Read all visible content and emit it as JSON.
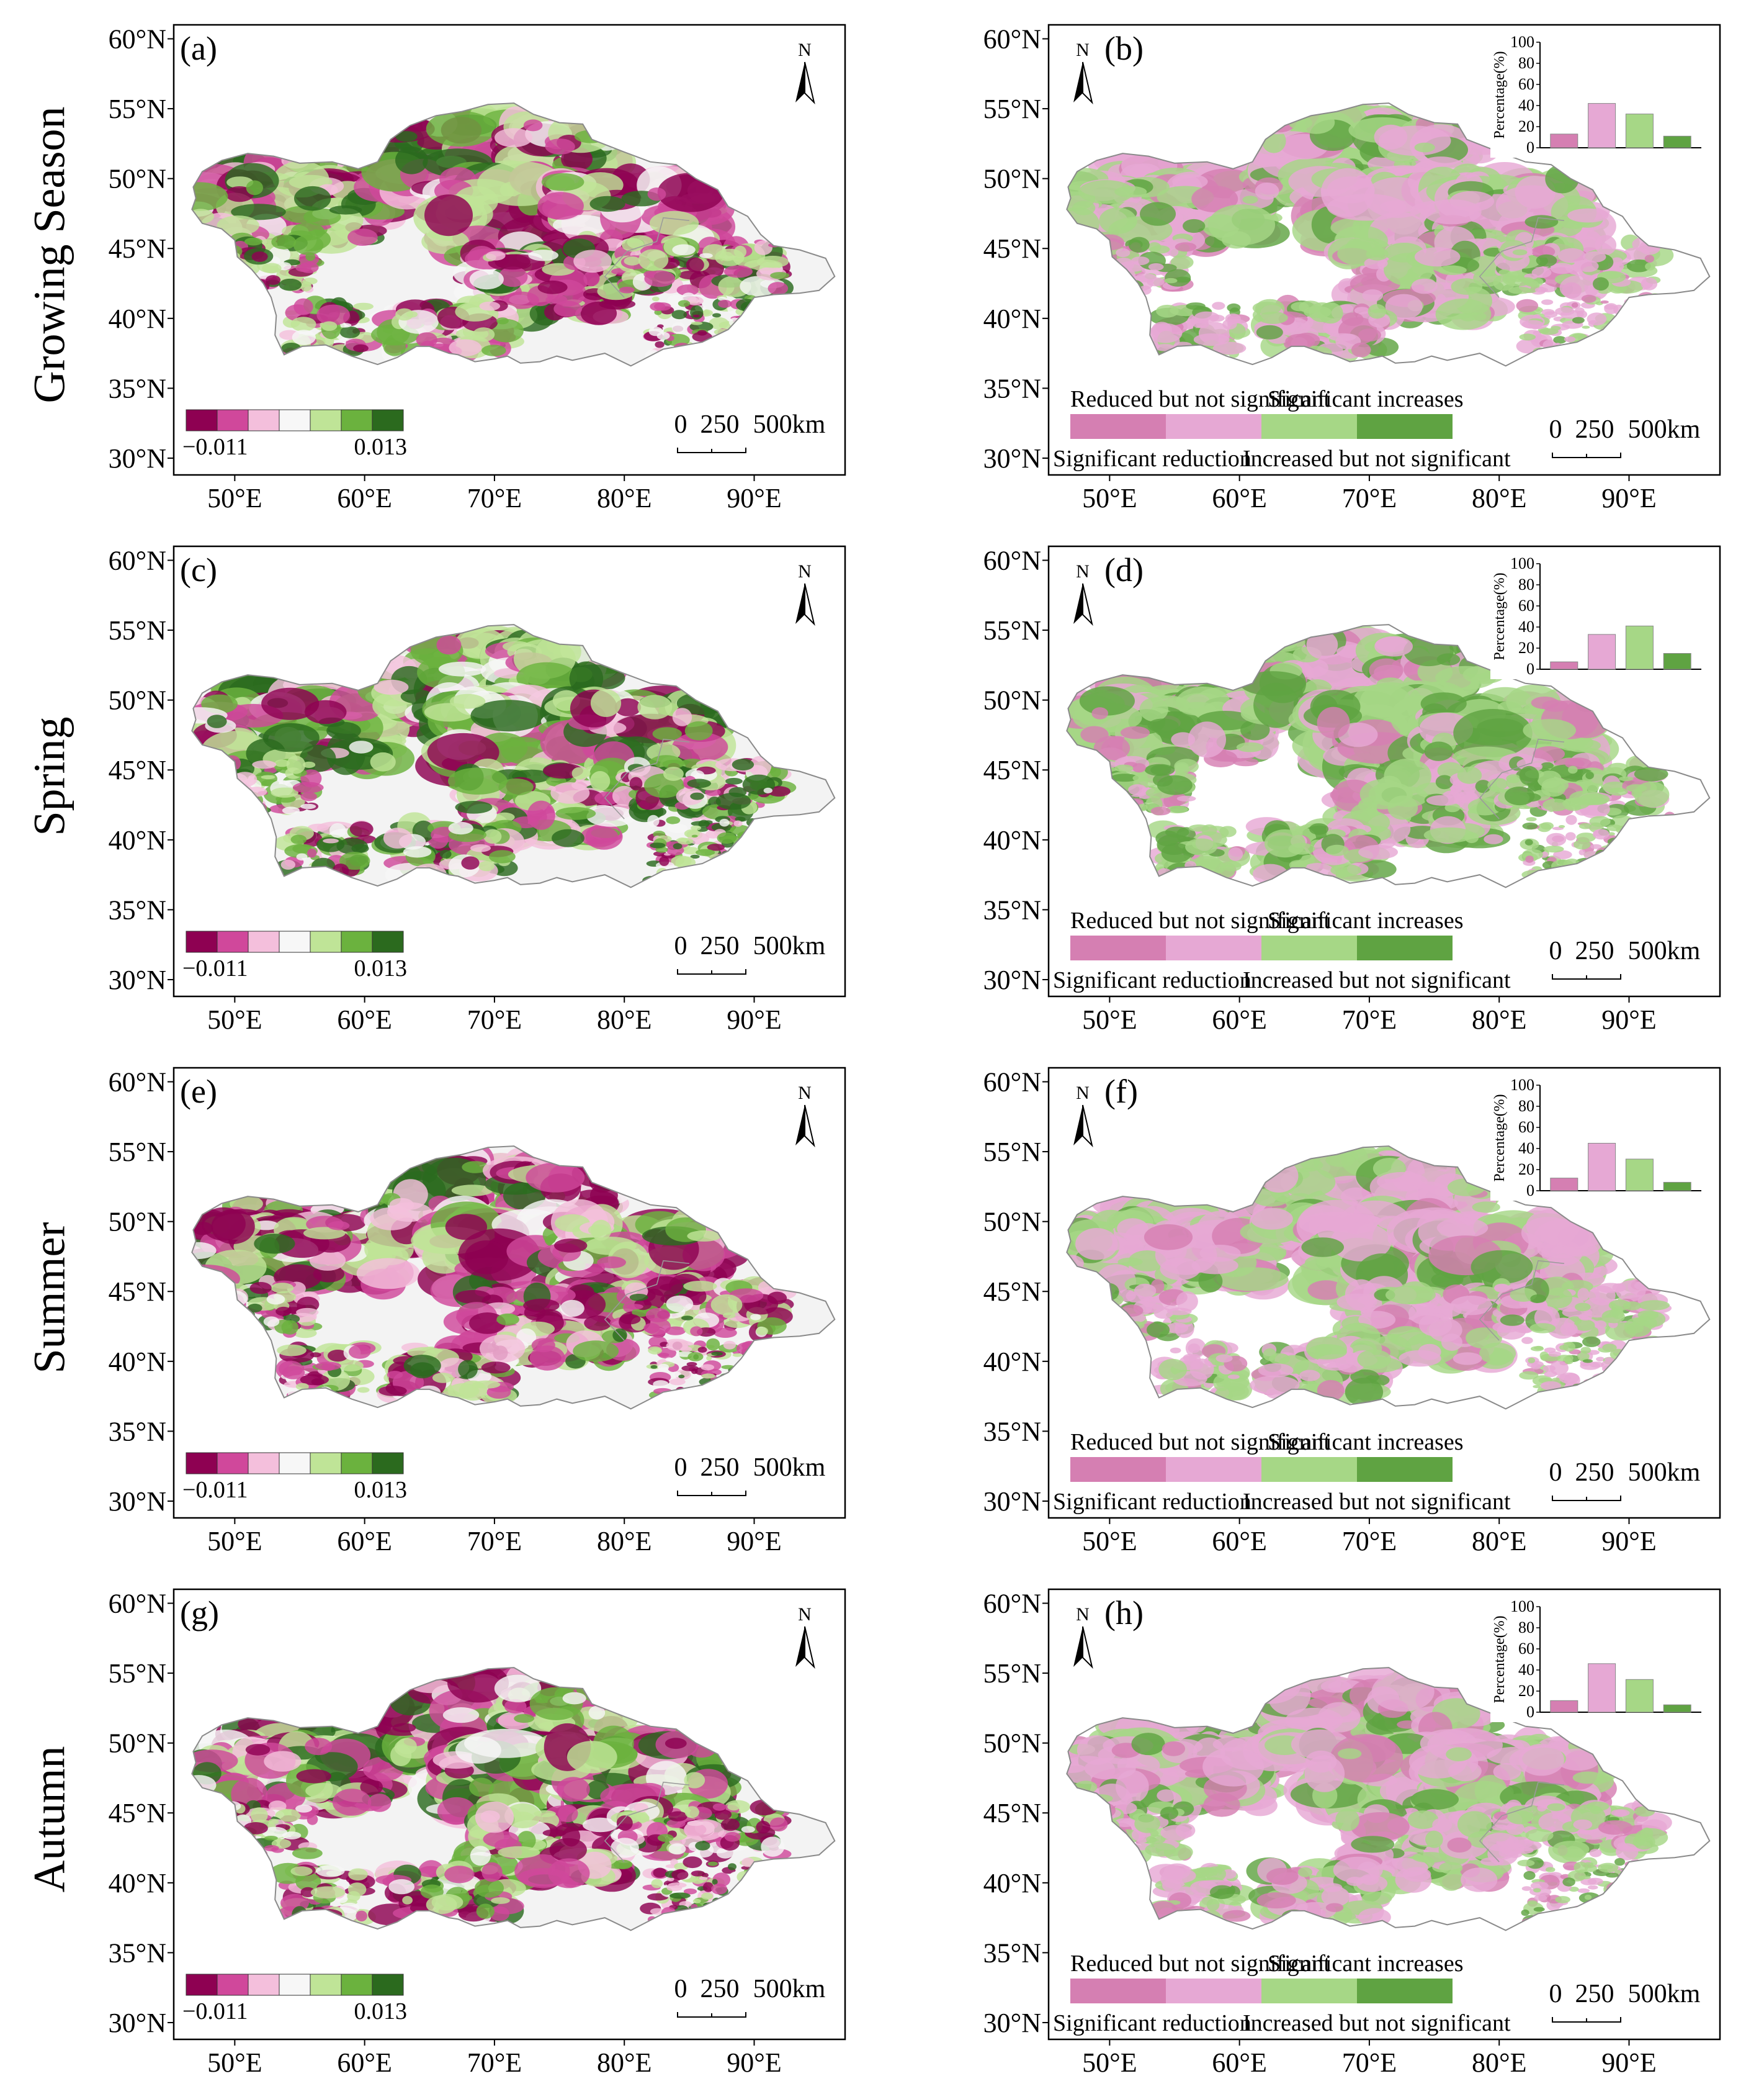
{
  "seasons": [
    "Growing Season",
    "Spring",
    "Summer",
    "Autumn"
  ],
  "panels": [
    {
      "label": "(a)",
      "type": "trend",
      "scheme": "growing"
    },
    {
      "label": "(b)",
      "type": "significance",
      "scheme": "growing",
      "percentages": [
        13,
        42,
        32,
        11
      ]
    },
    {
      "label": "(c)",
      "type": "trend",
      "scheme": "spring"
    },
    {
      "label": "(d)",
      "type": "significance",
      "scheme": "spring",
      "percentages": [
        7,
        33,
        41,
        15
      ]
    },
    {
      "label": "(e)",
      "type": "trend",
      "scheme": "summer"
    },
    {
      "label": "(f)",
      "type": "significance",
      "scheme": "summer",
      "percentages": [
        12,
        45,
        30,
        8
      ]
    },
    {
      "label": "(g)",
      "type": "trend",
      "scheme": "autumn"
    },
    {
      "label": "(h)",
      "type": "significance",
      "scheme": "autumn",
      "percentages": [
        11,
        46,
        31,
        7
      ]
    }
  ],
  "axes": {
    "lat_labels": [
      "60°N",
      "55°N",
      "50°N",
      "45°N",
      "40°N",
      "35°N",
      "30°N"
    ],
    "lon_labels": [
      "50°E",
      "60°E",
      "70°E",
      "80°E",
      "90°E"
    ]
  },
  "north_arrow": "N",
  "scalebar": {
    "t0": "0",
    "t1": "250",
    "t2": "500km"
  },
  "trend_legend": {
    "min": "−0.011",
    "max": "0.013",
    "colors": [
      "#8e0152",
      "#d0489b",
      "#f4bfdc",
      "#f7f7f7",
      "#bfe497",
      "#6bb23e",
      "#2b6a1e"
    ]
  },
  "sig_legend": {
    "top_left": "Reduced but not significant",
    "top_right": "Significant increases",
    "bottom_left": "Significant reduction",
    "bottom_right": "Increased but not significant",
    "colors": [
      "#d57fb2",
      "#e6a8d4",
      "#a6d786",
      "#5fa342"
    ]
  },
  "inset": {
    "ylabel": "Percentage(%)",
    "yticks": [
      "0",
      "20",
      "40",
      "60",
      "80",
      "100"
    ],
    "colors": [
      "#d57fb2",
      "#e6a8d4",
      "#a6d786",
      "#5fa342"
    ]
  }
}
